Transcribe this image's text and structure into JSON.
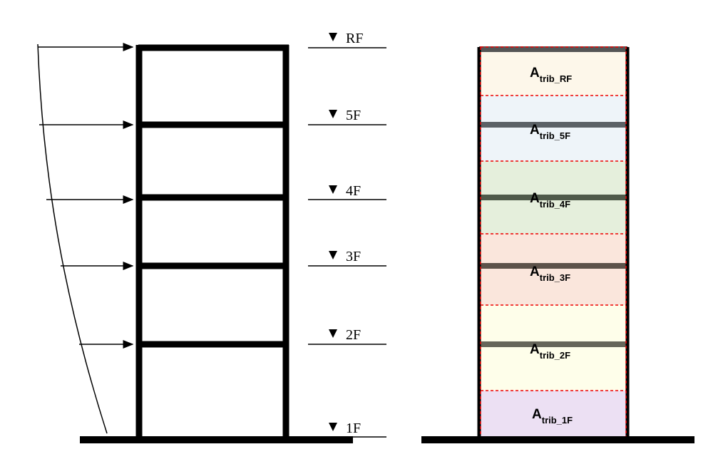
{
  "levels": [
    {
      "label": "RF"
    },
    {
      "label": "5F"
    },
    {
      "label": "4F"
    },
    {
      "label": "3F"
    },
    {
      "label": "2F"
    },
    {
      "label": "1F"
    }
  ],
  "tributary_areas": [
    {
      "main": "A",
      "sub": "trib_RF"
    },
    {
      "main": "A",
      "sub": "trib_5F"
    },
    {
      "main": "A",
      "sub": "trib_4F"
    },
    {
      "main": "A",
      "sub": "trib_3F"
    },
    {
      "main": "A",
      "sub": "trib_2F"
    },
    {
      "main": "A",
      "sub": "trib_1F"
    }
  ]
}
